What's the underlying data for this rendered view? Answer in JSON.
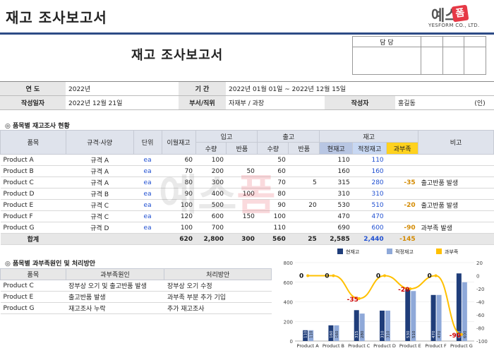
{
  "header": {
    "title": "재고 조사보고서"
  },
  "logo": {
    "word": "예스",
    "stamp": "폼",
    "sub": "YESFORM CO., LTD."
  },
  "doc_title": "재고 조사보고서",
  "approval": {
    "label": "담  당"
  },
  "info": {
    "year_label": "연      도",
    "year": "2022년",
    "period_label": "기      간",
    "period": "2022년 01월 01일 ~ 2022년 12월 15일",
    "date_label": "작성일자",
    "date": "2022년 12월 21일",
    "dept_label": "부서/직위",
    "dept": "자재부 / 과장",
    "author_label": "작성자",
    "author": "홍길동",
    "seal": "(인)"
  },
  "section1": "◎ 품목별 재고조사 현황",
  "section2": "◎ 품목별 과부족원인 및 처리방안",
  "main_headers": {
    "item": "품목",
    "spec": "규격·사양",
    "unit": "단위",
    "prev": "이월재고",
    "in": "입고",
    "out": "출고",
    "stock": "재고",
    "note": "비고",
    "qty": "수량",
    "ret": "반품",
    "cur": "현재고",
    "proper": "적정재고",
    "short": "과부족"
  },
  "rows": [
    {
      "item": "Product A",
      "spec": "규격 A",
      "unit": "ea",
      "prev": "60",
      "in_qty": "100",
      "in_ret": "",
      "out_qty": "50",
      "out_ret": "",
      "cur": "110",
      "proper": "110",
      "short": "",
      "note": ""
    },
    {
      "item": "Product B",
      "spec": "규격 A",
      "unit": "ea",
      "prev": "70",
      "in_qty": "200",
      "in_ret": "50",
      "out_qty": "60",
      "out_ret": "",
      "cur": "160",
      "proper": "160",
      "short": "",
      "note": ""
    },
    {
      "item": "Product C",
      "spec": "규격 A",
      "unit": "ea",
      "prev": "80",
      "in_qty": "300",
      "in_ret": "",
      "out_qty": "70",
      "out_ret": "5",
      "cur": "315",
      "proper": "280",
      "short": "-35",
      "note": "출고반품 발생"
    },
    {
      "item": "Product D",
      "spec": "규격 B",
      "unit": "ea",
      "prev": "90",
      "in_qty": "400",
      "in_ret": "100",
      "out_qty": "80",
      "out_ret": "",
      "cur": "310",
      "proper": "310",
      "short": "",
      "note": ""
    },
    {
      "item": "Product E",
      "spec": "규격 C",
      "unit": "ea",
      "prev": "100",
      "in_qty": "500",
      "in_ret": "",
      "out_qty": "90",
      "out_ret": "20",
      "cur": "530",
      "proper": "510",
      "short": "-20",
      "note": "출고반품 발생"
    },
    {
      "item": "Product F",
      "spec": "규격 C",
      "unit": "ea",
      "prev": "120",
      "in_qty": "600",
      "in_ret": "150",
      "out_qty": "100",
      "out_ret": "",
      "cur": "470",
      "proper": "470",
      "short": "",
      "note": ""
    },
    {
      "item": "Product G",
      "spec": "규격 D",
      "unit": "ea",
      "prev": "100",
      "in_qty": "700",
      "in_ret": "",
      "out_qty": "110",
      "out_ret": "",
      "cur": "690",
      "proper": "600",
      "short": "-90",
      "note": "과부족 발생"
    }
  ],
  "total": {
    "label": "합계",
    "prev": "620",
    "in_qty": "2,800",
    "in_ret": "300",
    "out_qty": "560",
    "out_ret": "25",
    "cur": "2,585",
    "proper": "2,440",
    "short": "-145"
  },
  "cause_headers": {
    "item": "품목",
    "cause": "과부족원인",
    "action": "처리방안"
  },
  "causes": [
    {
      "item": "Product C",
      "cause": "장부상 오기 및 출고반품 발생",
      "action": "장부상 오기 수정"
    },
    {
      "item": "Product E",
      "cause": "출고반품 발생",
      "action": "과부족 부분 추가 기입"
    },
    {
      "item": "Product G",
      "cause": "재고조사 누락",
      "action": "추가 재고조사"
    }
  ],
  "chart_data": {
    "type": "bar",
    "categories": [
      "Product A",
      "Product B",
      "Product C",
      "Product D",
      "Product E",
      "Product F",
      "Product G"
    ],
    "series": [
      {
        "name": "현재고",
        "values": [
          110,
          160,
          315,
          310,
          530,
          470,
          690
        ],
        "color": "#1f3d7a"
      },
      {
        "name": "적정재고",
        "values": [
          110,
          160,
          280,
          310,
          510,
          470,
          600
        ],
        "color": "#8fa9d9"
      },
      {
        "name": "과부족",
        "type": "line",
        "axis": "right",
        "values": [
          0,
          0,
          -35,
          0,
          -20,
          0,
          -90
        ],
        "color": "#ffc000"
      }
    ],
    "y_left": {
      "min": 0,
      "max": 800,
      "ticks": [
        "0",
        "200",
        "400",
        "600",
        "800"
      ]
    },
    "y_right": {
      "min": -100,
      "max": 20,
      "ticks": [
        "20",
        "0",
        "-20",
        "-40",
        "-60",
        "-80",
        "-100"
      ]
    },
    "line_labels": [
      "0",
      "0",
      "-35",
      "0",
      "-20",
      "0",
      "-90"
    ],
    "legend_position": "top"
  }
}
